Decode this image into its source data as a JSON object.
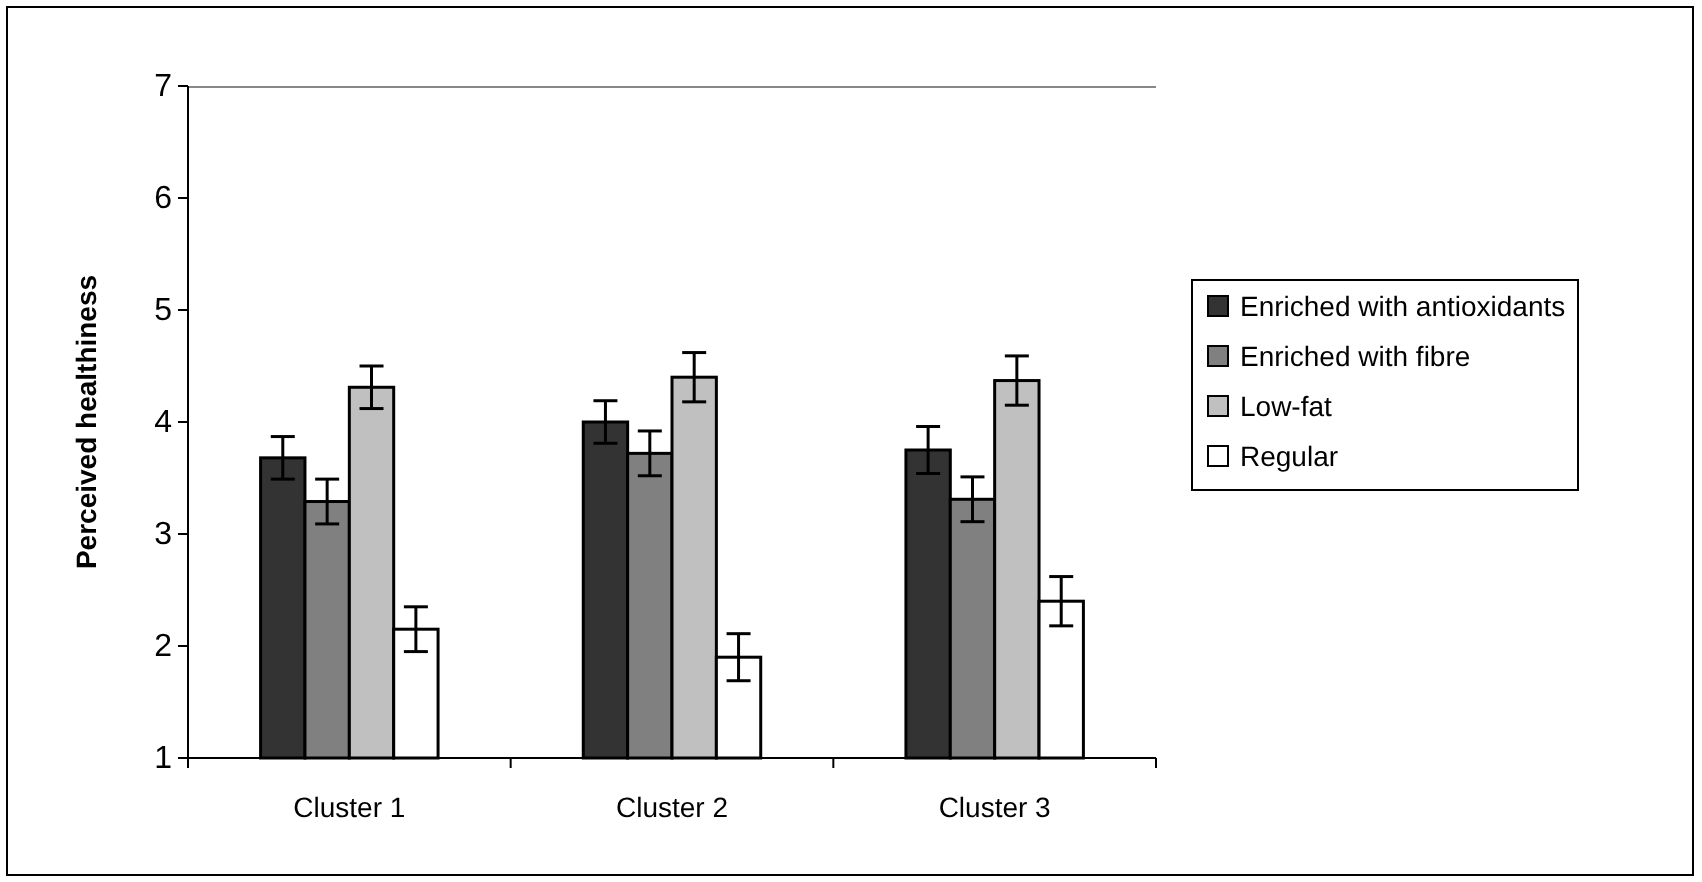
{
  "chart_data": {
    "type": "bar",
    "ylabel": "Perceived healthiness",
    "categories": [
      "Cluster 1",
      "Cluster 2",
      "Cluster 3"
    ],
    "series": [
      {
        "name": "Enriched with antioxidants",
        "color": "#333333",
        "values": [
          3.68,
          4.0,
          3.75
        ],
        "errors": [
          0.19,
          0.19,
          0.21
        ]
      },
      {
        "name": "Enriched with fibre",
        "color": "#808080",
        "values": [
          3.29,
          3.72,
          3.31
        ],
        "errors": [
          0.2,
          0.2,
          0.2
        ]
      },
      {
        "name": "Low-fat",
        "color": "#c0c0c0",
        "values": [
          4.31,
          4.4,
          4.37
        ],
        "errors": [
          0.19,
          0.22,
          0.22
        ]
      },
      {
        "name": "Regular",
        "color": "#ffffff",
        "values": [
          2.15,
          1.9,
          2.4
        ],
        "errors": [
          0.2,
          0.21,
          0.22
        ]
      }
    ],
    "ylim": [
      1,
      7
    ],
    "yticks": [
      1,
      2,
      3,
      4,
      5,
      6,
      7
    ],
    "grid": false,
    "legend": "right"
  }
}
